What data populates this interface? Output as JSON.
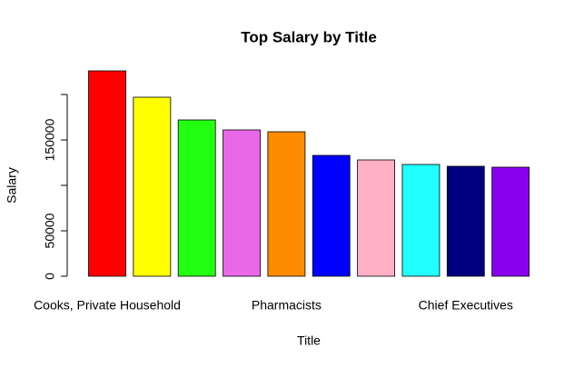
{
  "chart_data": {
    "type": "bar",
    "title": "Top Salary by Title",
    "x_label": "Title",
    "y_label": "Salary",
    "categories": [
      "Cooks, Private Household",
      null,
      null,
      null,
      "Pharmacists",
      null,
      null,
      null,
      "Chief Executives",
      null
    ],
    "values": [
      226000,
      197000,
      172000,
      161000,
      159000,
      133000,
      128000,
      123000,
      121000,
      120000
    ],
    "colors": [
      "#ff0000",
      "#ffff00",
      "#22ff11",
      "#e868e8",
      "#ff8c00",
      "#0000ff",
      "#ffb0c4",
      "#22ffff",
      "#000080",
      "#8800ee"
    ],
    "ylim": [
      0,
      230000
    ],
    "yticks": [
      0,
      50000,
      {
        "value": 100000,
        "label": null
      },
      150000,
      {
        "value": 200000,
        "label": null
      }
    ]
  }
}
